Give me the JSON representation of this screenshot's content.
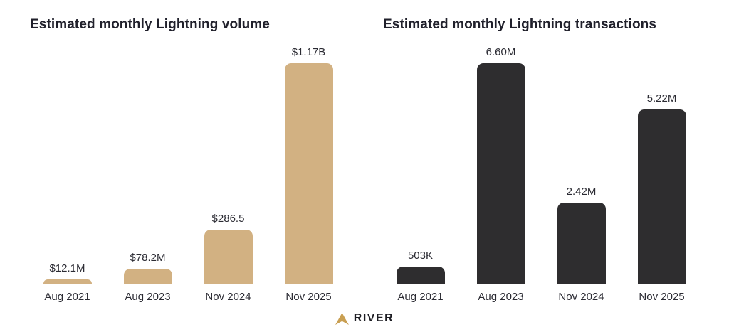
{
  "chart_data": [
    {
      "type": "bar",
      "title": "Estimated monthly Lightning volume",
      "categories": [
        "Aug 2021",
        "Aug 2023",
        "Nov 2024",
        "Nov 2025"
      ],
      "values": [
        12.1,
        78.2,
        286.5,
        1170
      ],
      "value_labels": [
        "$12.1M",
        "$78.2M",
        "$286.5",
        "$1.17B"
      ],
      "bar_color": "#d2b182",
      "ylim": [
        0,
        1170
      ],
      "grid": false,
      "legend": false
    },
    {
      "type": "bar",
      "title": "Estimated monthly Lightning transactions",
      "categories": [
        "Aug 2021",
        "Aug 2023",
        "Nov 2024",
        "Nov 2025"
      ],
      "values": [
        0.503,
        6.6,
        2.42,
        5.22
      ],
      "value_labels": [
        "503K",
        "6.60M",
        "2.42M",
        "5.22M"
      ],
      "bar_color": "#2e2d2f",
      "ylim": [
        0,
        6.6
      ],
      "grid": false,
      "legend": false
    }
  ],
  "footer": {
    "brand": "RIVER",
    "logo_color": "#c99f52"
  }
}
